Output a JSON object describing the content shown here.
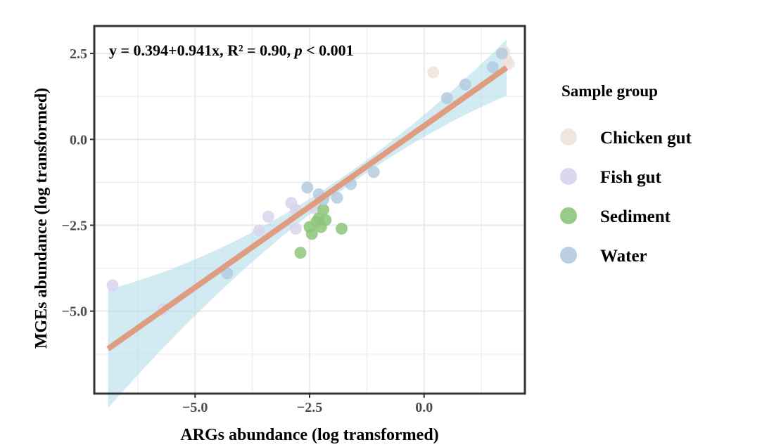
{
  "chart_data": {
    "type": "scatter",
    "xlabel": "ARGs abundance (log transformed)",
    "ylabel": "MGEs abundance (log transformed)",
    "xlim": [
      -7.2,
      2.2
    ],
    "ylim": [
      -7.4,
      3.3
    ],
    "x_ticks": [
      -5.0,
      -2.5,
      0.0
    ],
    "x_tick_labels": [
      "−5.0",
      "−2.5",
      "0.0"
    ],
    "y_ticks": [
      2.5,
      0.0,
      -2.5,
      -5.0
    ],
    "y_tick_labels": [
      "2.5",
      "0.0",
      "−2.5",
      "−5.0"
    ],
    "grid": true,
    "annotation": {
      "prefix": "y = 0.394+0.941x, R² = 0.90, ",
      "p_symbol": "p",
      "suffix": " < 0.001"
    },
    "fit": {
      "intercept": 0.394,
      "slope": 0.941,
      "x_range": [
        -6.9,
        1.8
      ],
      "color": "#e0987a",
      "ci_color": "#add8e6"
    },
    "legend": {
      "title": "Sample group",
      "placement": "right"
    },
    "series": [
      {
        "name": "Chicken gut",
        "color": "#ede3dc",
        "points": [
          [
            0.2,
            1.95
          ],
          [
            1.75,
            2.55
          ],
          [
            1.8,
            2.3
          ],
          [
            1.85,
            2.2
          ]
        ]
      },
      {
        "name": "Fish gut",
        "color": "#d8d3ec",
        "points": [
          [
            -6.8,
            -4.25
          ],
          [
            -5.7,
            -4.95
          ],
          [
            -3.4,
            -2.25
          ],
          [
            -3.6,
            -2.65
          ],
          [
            -2.9,
            -1.85
          ],
          [
            -2.8,
            -2.05
          ],
          [
            -2.8,
            -2.6
          ],
          [
            -2.4,
            -2.0
          ]
        ]
      },
      {
        "name": "Sediment",
        "color": "#8cc57a",
        "points": [
          [
            -2.7,
            -3.3
          ],
          [
            -2.5,
            -2.55
          ],
          [
            -2.45,
            -2.75
          ],
          [
            -2.35,
            -2.4
          ],
          [
            -2.3,
            -2.3
          ],
          [
            -2.25,
            -2.55
          ],
          [
            -2.2,
            -2.05
          ],
          [
            -2.15,
            -2.35
          ],
          [
            -1.8,
            -2.6
          ]
        ]
      },
      {
        "name": "Water",
        "color": "#b4cbe0",
        "points": [
          [
            -4.3,
            -3.9
          ],
          [
            -2.55,
            -1.4
          ],
          [
            -2.3,
            -1.6
          ],
          [
            -2.2,
            -1.75
          ],
          [
            -1.9,
            -1.7
          ],
          [
            -1.6,
            -1.3
          ],
          [
            -1.1,
            -0.95
          ],
          [
            0.5,
            1.2
          ],
          [
            0.9,
            1.6
          ],
          [
            1.5,
            2.1
          ],
          [
            1.7,
            2.5
          ]
        ]
      }
    ]
  }
}
